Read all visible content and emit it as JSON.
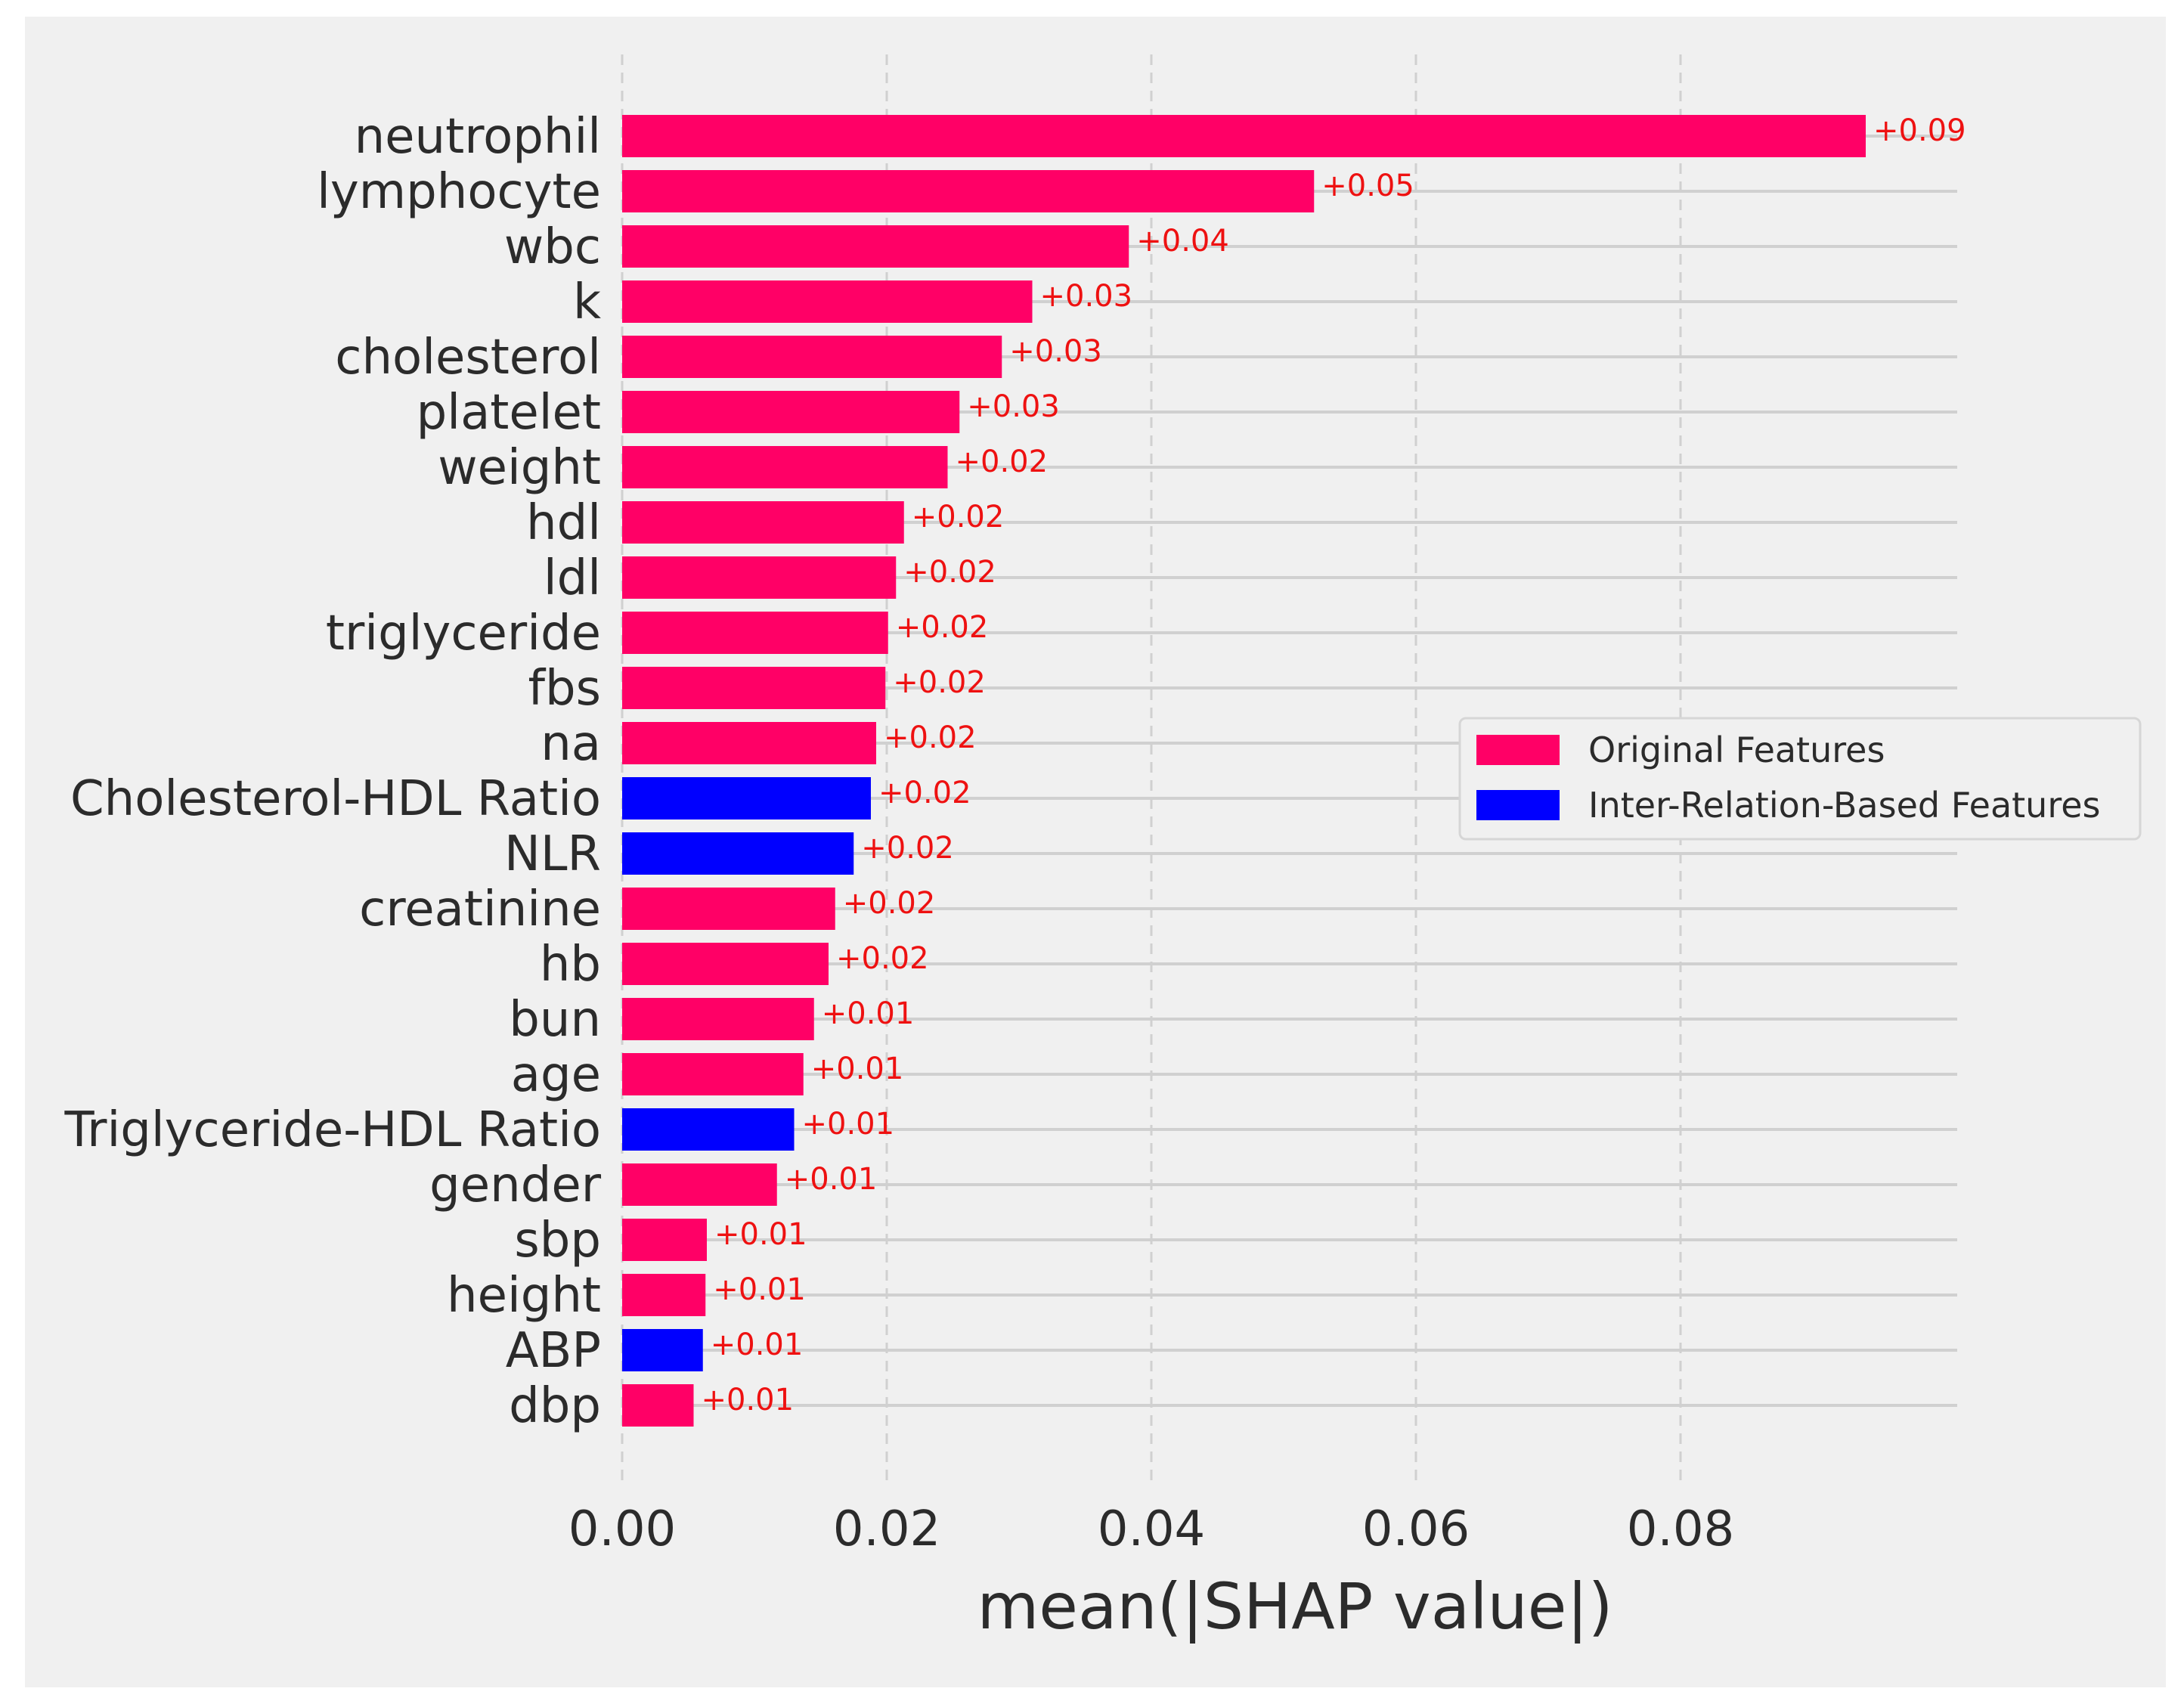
{
  "chart_data": {
    "type": "bar",
    "orientation": "horizontal",
    "title": "",
    "xlabel": "mean(|SHAP value|)",
    "ylabel": "",
    "xlim": [
      0,
      0.1
    ],
    "xticks": [
      0.0,
      0.02,
      0.04,
      0.06,
      0.08
    ],
    "xtick_labels": [
      "0.00",
      "0.02",
      "0.04",
      "0.06",
      "0.08"
    ],
    "grid": true,
    "legend_position": "center-right",
    "colors": {
      "original": "#ff0066",
      "inter_relation": "#0000ff",
      "value_label": "#ee1111",
      "background": "#f0f0f0",
      "grid": "#d0d0d0",
      "text": "#2b2b2b"
    },
    "legend": [
      {
        "key": "original",
        "label": "Original Features"
      },
      {
        "key": "inter_relation",
        "label": "Inter-Relation-Based Features"
      }
    ],
    "bars": [
      {
        "feature": "neutrophil",
        "value": 0.094,
        "label": "+0.09",
        "group": "original"
      },
      {
        "feature": "lymphocyte",
        "value": 0.0523,
        "label": "+0.05",
        "group": "original"
      },
      {
        "feature": "wbc",
        "value": 0.0383,
        "label": "+0.04",
        "group": "original"
      },
      {
        "feature": "k",
        "value": 0.031,
        "label": "+0.03",
        "group": "original"
      },
      {
        "feature": "cholesterol",
        "value": 0.0287,
        "label": "+0.03",
        "group": "original"
      },
      {
        "feature": "platelet",
        "value": 0.0255,
        "label": "+0.03",
        "group": "original"
      },
      {
        "feature": "weight",
        "value": 0.0246,
        "label": "+0.02",
        "group": "original"
      },
      {
        "feature": "hdl",
        "value": 0.0213,
        "label": "+0.02",
        "group": "original"
      },
      {
        "feature": "ldl",
        "value": 0.0207,
        "label": "+0.02",
        "group": "original"
      },
      {
        "feature": "triglyceride",
        "value": 0.0201,
        "label": "+0.02",
        "group": "original"
      },
      {
        "feature": "fbs",
        "value": 0.0199,
        "label": "+0.02",
        "group": "original"
      },
      {
        "feature": "na",
        "value": 0.0192,
        "label": "+0.02",
        "group": "original"
      },
      {
        "feature": "Cholesterol-HDL Ratio",
        "value": 0.0188,
        "label": "+0.02",
        "group": "inter_relation"
      },
      {
        "feature": "NLR",
        "value": 0.0175,
        "label": "+0.02",
        "group": "inter_relation"
      },
      {
        "feature": "creatinine",
        "value": 0.0161,
        "label": "+0.02",
        "group": "original"
      },
      {
        "feature": "hb",
        "value": 0.0156,
        "label": "+0.02",
        "group": "original"
      },
      {
        "feature": "bun",
        "value": 0.0145,
        "label": "+0.01",
        "group": "original"
      },
      {
        "feature": "age",
        "value": 0.0137,
        "label": "+0.01",
        "group": "original"
      },
      {
        "feature": "Triglyceride-HDL Ratio",
        "value": 0.013,
        "label": "+0.01",
        "group": "inter_relation"
      },
      {
        "feature": "gender",
        "value": 0.0117,
        "label": "+0.01",
        "group": "original"
      },
      {
        "feature": "sbp",
        "value": 0.0064,
        "label": "+0.01",
        "group": "original"
      },
      {
        "feature": "height",
        "value": 0.0063,
        "label": "+0.01",
        "group": "original"
      },
      {
        "feature": "ABP",
        "value": 0.0061,
        "label": "+0.01",
        "group": "inter_relation"
      },
      {
        "feature": "dbp",
        "value": 0.0054,
        "label": "+0.01",
        "group": "original"
      }
    ]
  }
}
